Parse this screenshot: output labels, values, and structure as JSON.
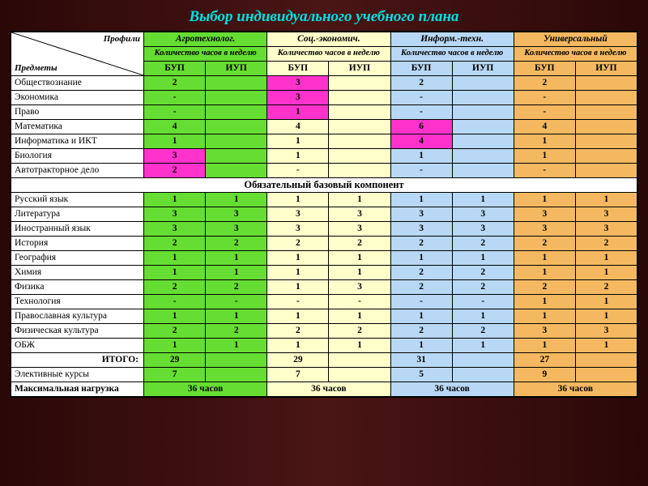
{
  "title": "Выбор индивидуального учебного плана",
  "diag": {
    "top": "Профили",
    "bottom": "Предметы"
  },
  "profiles": [
    "Агротехнолог.",
    "Соц.-экономич.",
    "Информ.-техн.",
    "Универсальный"
  ],
  "sub1": "Количество часов в неделю",
  "sub2": [
    "БУП",
    "ИУП"
  ],
  "colors": {
    "slide_title": "#00e0e0",
    "profile_bg": [
      "#66dd33",
      "#ffffcc",
      "#b8d8f5",
      "#f4b860"
    ],
    "highlight": "#ff33cc",
    "border": "#000000",
    "page_bg": "#3a1a1a"
  },
  "section_title": "Обязательный базовый компонент",
  "top_rows": [
    {
      "subject": "Обществознание",
      "cells": [
        "2",
        "",
        "3",
        "",
        "2",
        "",
        "2",
        ""
      ],
      "hl": [
        2
      ]
    },
    {
      "subject": "Экономика",
      "cells": [
        "-",
        "",
        "3",
        "",
        "-",
        "",
        "-",
        ""
      ],
      "hl": [
        2
      ]
    },
    {
      "subject": "Право",
      "cells": [
        "-",
        "",
        "1",
        "",
        "-",
        "",
        "-",
        ""
      ],
      "hl": [
        2
      ]
    },
    {
      "subject": "Математика",
      "cells": [
        "4",
        "",
        "4",
        "",
        "6",
        "",
        "4",
        ""
      ],
      "hl": [
        4
      ]
    },
    {
      "subject": "Информатика и ИКТ",
      "cells": [
        "1",
        "",
        "1",
        "",
        "4",
        "",
        "1",
        ""
      ],
      "hl": [
        4
      ]
    },
    {
      "subject": "Биология",
      "cells": [
        "3",
        "",
        "1",
        "",
        "1",
        "",
        "1",
        ""
      ],
      "hl": [
        0
      ]
    },
    {
      "subject": "Автотракторное дело",
      "cells": [
        "2",
        "",
        "-",
        "",
        "-",
        "",
        "-",
        ""
      ],
      "hl": [
        0
      ]
    }
  ],
  "base_rows": [
    {
      "subject": "Русский язык",
      "cells": [
        "1",
        "1",
        "1",
        "1",
        "1",
        "1",
        "1",
        "1"
      ]
    },
    {
      "subject": "Литература",
      "cells": [
        "3",
        "3",
        "3",
        "3",
        "3",
        "3",
        "3",
        "3"
      ]
    },
    {
      "subject": "Иностранный язык",
      "cells": [
        "3",
        "3",
        "3",
        "3",
        "3",
        "3",
        "3",
        "3"
      ]
    },
    {
      "subject": "История",
      "cells": [
        "2",
        "2",
        "2",
        "2",
        "2",
        "2",
        "2",
        "2"
      ]
    },
    {
      "subject": "География",
      "cells": [
        "1",
        "1",
        "1",
        "1",
        "1",
        "1",
        "1",
        "1"
      ]
    },
    {
      "subject": "Химия",
      "cells": [
        "1",
        "1",
        "1",
        "1",
        "2",
        "2",
        "1",
        "1"
      ]
    },
    {
      "subject": "Физика",
      "cells": [
        "2",
        "2",
        "1",
        "3",
        "2",
        "2",
        "2",
        "2"
      ]
    },
    {
      "subject": "Технология",
      "cells": [
        "-",
        "-",
        "-",
        "-",
        "-",
        "-",
        "1",
        "1"
      ]
    },
    {
      "subject": "Православная культура",
      "cells": [
        "1",
        "1",
        "1",
        "1",
        "1",
        "1",
        "1",
        "1"
      ]
    },
    {
      "subject": "Физическая культура",
      "cells": [
        "2",
        "2",
        "2",
        "2",
        "2",
        "2",
        "3",
        "3"
      ]
    },
    {
      "subject": "ОБЖ",
      "cells": [
        "1",
        "1",
        "1",
        "1",
        "1",
        "1",
        "1",
        "1"
      ]
    }
  ],
  "footer_rows": [
    {
      "subject": "ИТОГО:",
      "right": true,
      "bold": true,
      "cells": [
        "29",
        "",
        "29",
        "",
        "31",
        "",
        "27",
        ""
      ]
    },
    {
      "subject": "Элективные курсы",
      "cells": [
        "7",
        "",
        "7",
        "",
        "5",
        "",
        "9",
        ""
      ]
    },
    {
      "subject": "Максимальная нагрузка",
      "bold": true,
      "cells": [
        "36 часов",
        "",
        "36 часов",
        "",
        "36 часов",
        "",
        "36 часов",
        ""
      ],
      "merge": true
    }
  ]
}
